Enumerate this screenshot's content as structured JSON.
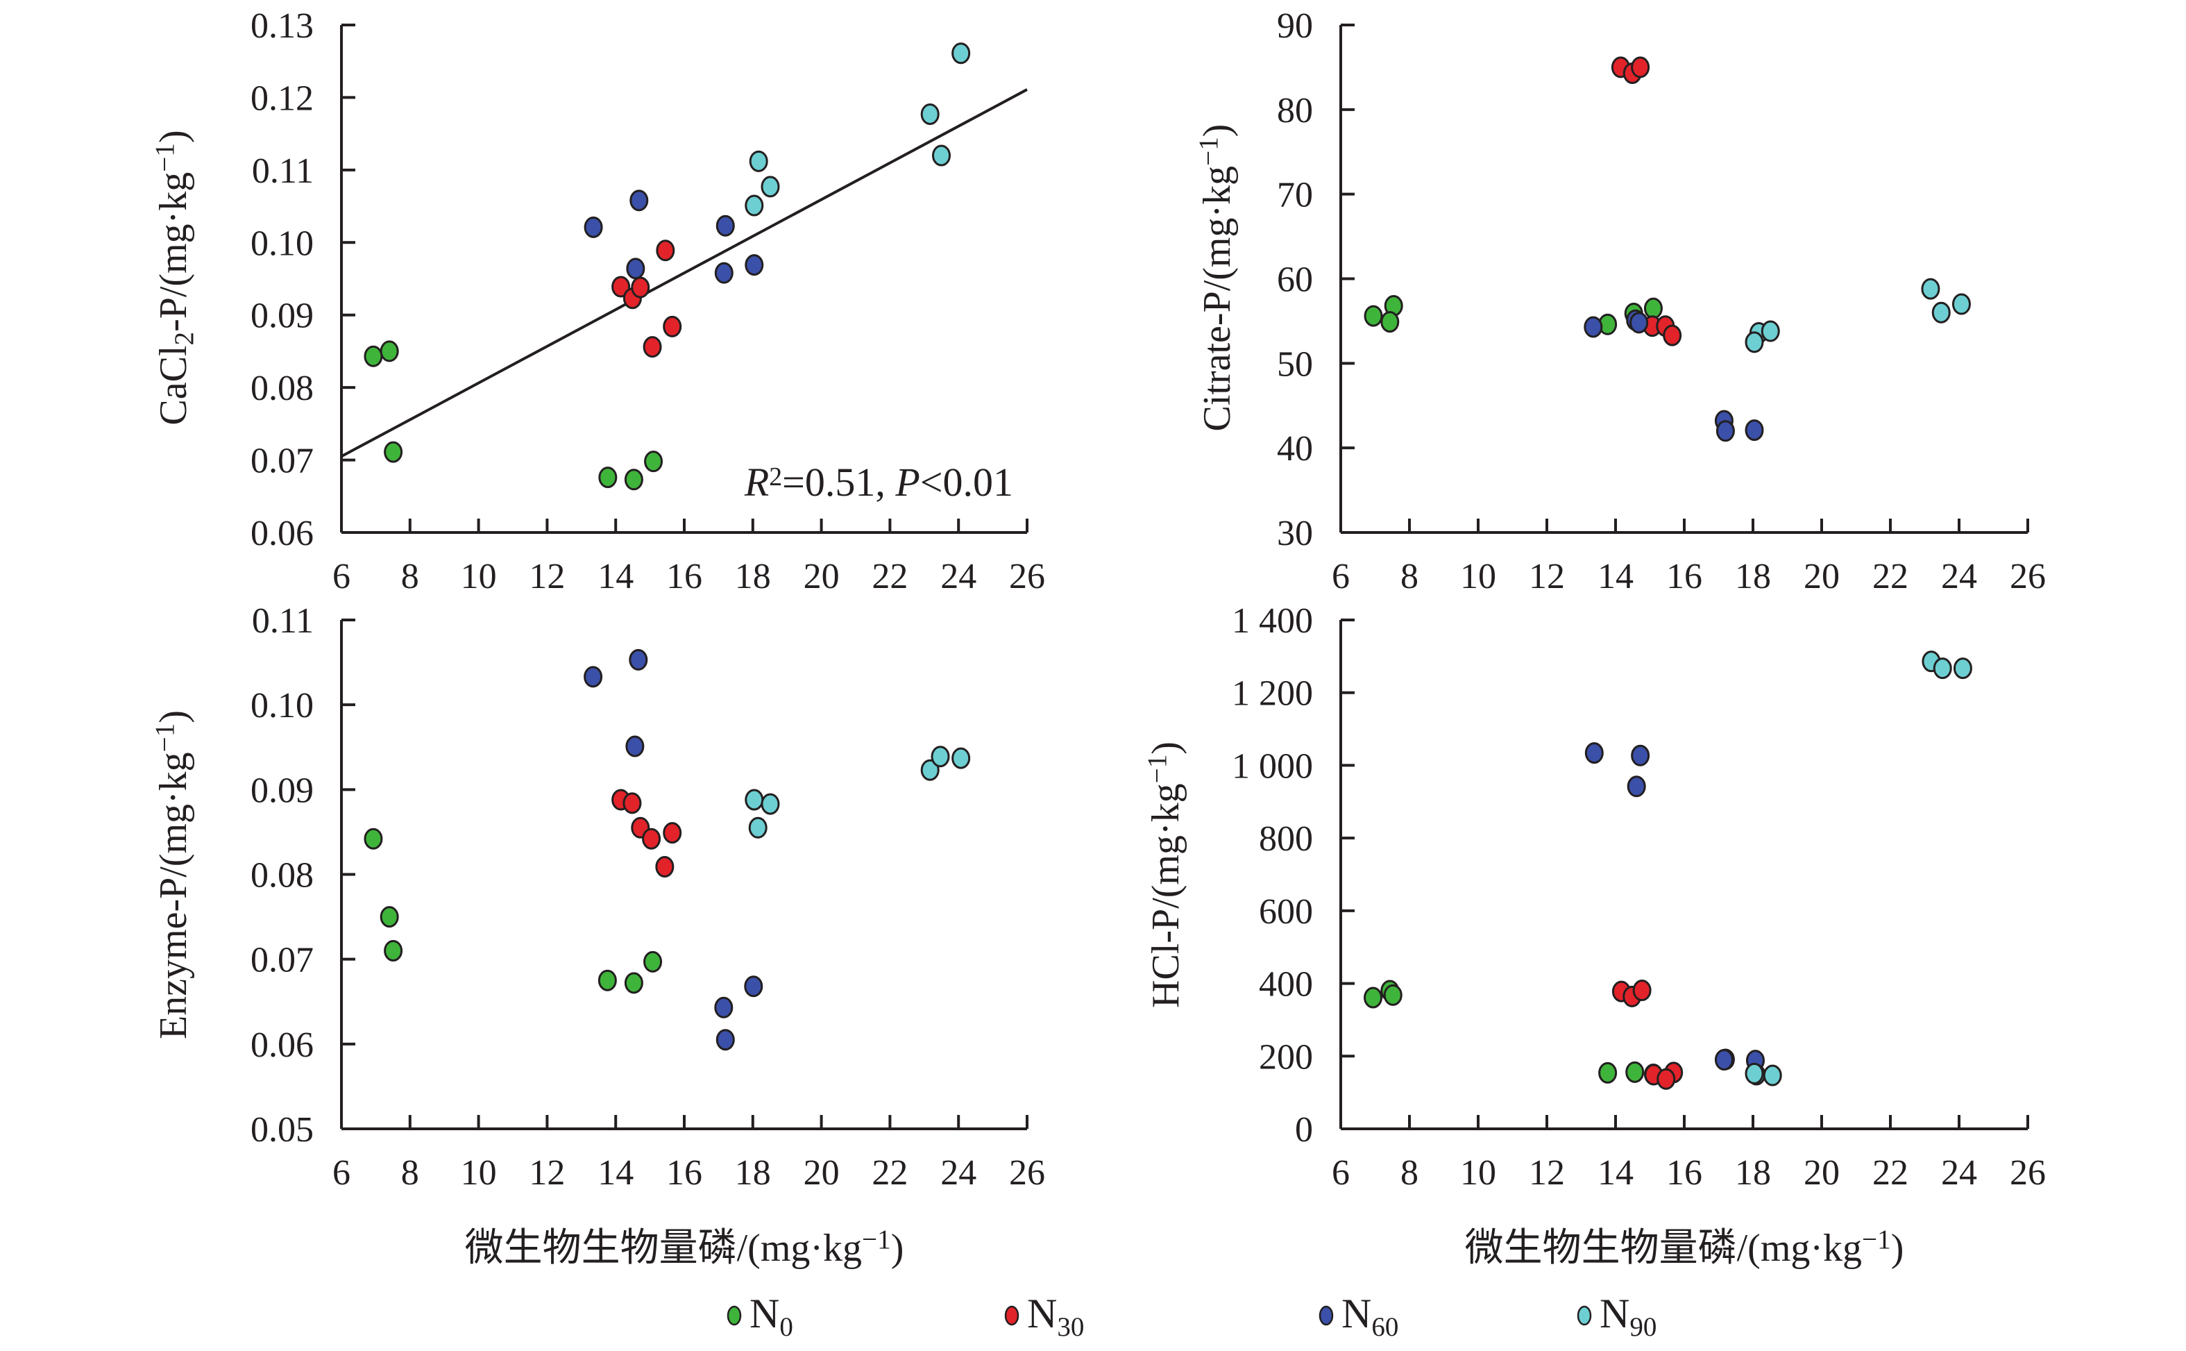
{
  "series_styles": [
    {
      "name": "N0",
      "label_main": "N",
      "label_sub": "0",
      "color": "#3fb43b"
    },
    {
      "name": "N30",
      "label_main": "N",
      "label_sub": "30",
      "color": "#e3232a"
    },
    {
      "name": "N60",
      "label_main": "N",
      "label_sub": "60",
      "color": "#3b50a8"
    },
    {
      "name": "N90",
      "label_main": "N",
      "label_sub": "90",
      "color": "#6dcfd2"
    }
  ],
  "shared_xlabel": "微生物生物量磷/(mg·kg⁻¹)",
  "legend_position": "bottom",
  "chart_data": [
    {
      "type": "scatter",
      "panel": "top-left",
      "title": "",
      "xlabel": "",
      "ylabel": "CaCl₂-P/(mg·kg⁻¹)",
      "xlim": [
        6,
        26
      ],
      "ylim": [
        0.06,
        0.13
      ],
      "xticks": [
        6,
        8,
        10,
        12,
        14,
        16,
        18,
        20,
        22,
        24,
        26
      ],
      "yticks": [
        0.06,
        0.07,
        0.08,
        0.09,
        0.1,
        0.11,
        0.12,
        0.13
      ],
      "ytick_labels": [
        "0.06",
        "0.07",
        "0.08",
        "0.09",
        "0.10",
        "0.11",
        "0.12",
        "0.13"
      ],
      "xtick_labels": [
        "6",
        "8",
        "10",
        "12",
        "14",
        "16",
        "18",
        "20",
        "22",
        "24",
        "26"
      ],
      "annotation": {
        "r2_label": "R",
        "r2_sup": "2",
        "text": "=0.51, ",
        "p_label": "P",
        "p_text": "<0.01"
      },
      "trendline": {
        "x": [
          6,
          26
        ],
        "y": [
          0.0705,
          0.1211
        ]
      },
      "grid": false,
      "series": [
        {
          "name": "N0",
          "x": [
            6.93,
            7.4,
            7.51,
            13.77,
            14.53,
            15.1
          ],
          "y": [
            0.0843,
            0.085,
            0.0711,
            0.0676,
            0.0673,
            0.0698
          ]
        },
        {
          "name": "N30",
          "x": [
            14.15,
            14.49,
            14.72,
            15.45,
            15.65,
            15.07
          ],
          "y": [
            0.0939,
            0.0923,
            0.0938,
            0.0989,
            0.0884,
            0.0856
          ]
        },
        {
          "name": "N60",
          "x": [
            13.35,
            14.68,
            14.58,
            17.2,
            17.16,
            18.04
          ],
          "y": [
            0.1021,
            0.1058,
            0.0964,
            0.1023,
            0.0958,
            0.0969
          ]
        },
        {
          "name": "N90",
          "x": [
            18.17,
            18.51,
            18.04,
            23.17,
            23.5,
            24.07
          ],
          "y": [
            0.1112,
            0.1077,
            0.1051,
            0.1177,
            0.112,
            0.1261
          ]
        }
      ]
    },
    {
      "type": "scatter",
      "panel": "top-right",
      "title": "",
      "xlabel": "",
      "ylabel": "Citrate-P/(mg·kg⁻¹)",
      "xlim": [
        6,
        26
      ],
      "ylim": [
        30,
        90
      ],
      "xticks": [
        6,
        8,
        10,
        12,
        14,
        16,
        18,
        20,
        22,
        24,
        26
      ],
      "yticks": [
        30,
        40,
        50,
        60,
        70,
        80,
        90
      ],
      "ytick_labels": [
        "30",
        "40",
        "50",
        "60",
        "70",
        "80",
        "90"
      ],
      "xtick_labels": [],
      "grid": false,
      "series": [
        {
          "name": "N0",
          "x": [
            6.95,
            7.54,
            7.43,
            13.77,
            14.53,
            15.1
          ],
          "y": [
            55.6,
            56.8,
            54.9,
            54.6,
            55.9,
            56.5
          ]
        },
        {
          "name": "N30",
          "x": [
            14.15,
            14.49,
            14.72,
            15.07,
            15.45,
            15.65
          ],
          "y": [
            85.0,
            84.3,
            85.0,
            54.4,
            54.4,
            53.3
          ]
        },
        {
          "name": "N60",
          "x": [
            13.35,
            14.58,
            14.68,
            17.16,
            17.2,
            18.04
          ],
          "y": [
            54.3,
            55.1,
            54.8,
            43.2,
            42.0,
            42.1
          ]
        },
        {
          "name": "N90",
          "x": [
            18.17,
            18.51,
            18.04,
            23.17,
            23.48,
            24.07
          ],
          "y": [
            53.6,
            53.8,
            52.5,
            58.8,
            56.0,
            57.0
          ]
        }
      ]
    },
    {
      "type": "scatter",
      "panel": "bottom-left",
      "title": "",
      "xlabel": "微生物生物量磷/(mg·kg⁻¹)",
      "ylabel": "Enzyme-P/(mg·kg⁻¹)",
      "xlim": [
        6,
        26
      ],
      "ylim": [
        0.05,
        0.11
      ],
      "xticks": [
        6,
        8,
        10,
        12,
        14,
        16,
        18,
        20,
        22,
        24,
        26
      ],
      "yticks": [
        0.05,
        0.06,
        0.07,
        0.08,
        0.09,
        0.1,
        0.11
      ],
      "ytick_labels": [
        "0.05",
        "0.06",
        "0.07",
        "0.08",
        "0.09",
        "0.10",
        "0.11"
      ],
      "xtick_labels": [
        "6",
        "8",
        "10",
        "12",
        "14",
        "16",
        "18",
        "20",
        "22",
        "24",
        "26"
      ],
      "grid": false,
      "series": [
        {
          "name": "N0",
          "x": [
            6.93,
            7.4,
            7.51,
            13.76,
            14.53,
            15.08
          ],
          "y": [
            0.0842,
            0.075,
            0.071,
            0.0675,
            0.0672,
            0.0697
          ]
        },
        {
          "name": "N30",
          "x": [
            14.15,
            14.48,
            14.72,
            15.04,
            15.65,
            15.43
          ],
          "y": [
            0.0888,
            0.0884,
            0.0855,
            0.0842,
            0.0849,
            0.0809
          ]
        },
        {
          "name": "N60",
          "x": [
            13.34,
            14.66,
            14.56,
            18.02,
            17.15,
            17.2
          ],
          "y": [
            0.1033,
            0.1053,
            0.0951,
            0.0668,
            0.0643,
            0.0605
          ]
        },
        {
          "name": "N90",
          "x": [
            18.04,
            18.51,
            18.15,
            23.17,
            23.47,
            24.07
          ],
          "y": [
            0.0888,
            0.0883,
            0.0855,
            0.0923,
            0.0939,
            0.0937
          ]
        }
      ]
    },
    {
      "type": "scatter",
      "panel": "bottom-right",
      "title": "",
      "xlabel": "微生物生物量磷/(mg·kg⁻¹)",
      "ylabel": "HCl-P/(mg·kg⁻¹)",
      "xlim": [
        6,
        26
      ],
      "ylim": [
        0,
        1400
      ],
      "xticks": [
        6,
        8,
        10,
        12,
        14,
        16,
        18,
        20,
        22,
        24,
        26
      ],
      "yticks": [
        0,
        200,
        400,
        600,
        800,
        1000,
        1200,
        1400
      ],
      "ytick_labels": [
        "0",
        "200",
        "400",
        "600",
        "800",
        "1 000",
        "1 200",
        "1 400"
      ],
      "xtick_labels": [
        "6",
        "8",
        "10",
        "12",
        "14",
        "16",
        "18",
        "20",
        "22",
        "24",
        "26"
      ],
      "grid": false,
      "series": [
        {
          "name": "N0",
          "x": [
            6.94,
            7.43,
            7.52,
            13.77,
            14.56,
            15.1
          ],
          "y": [
            361,
            380,
            368,
            154,
            156,
            150
          ]
        },
        {
          "name": "N30",
          "x": [
            14.17,
            14.48,
            14.77,
            15.11,
            15.69,
            15.47
          ],
          "y": [
            378,
            364,
            381,
            149,
            155,
            137
          ]
        },
        {
          "name": "N60",
          "x": [
            13.38,
            14.72,
            14.61,
            17.2,
            17.16,
            18.07
          ],
          "y": [
            1034,
            1027,
            942,
            191,
            190,
            188
          ]
        },
        {
          "name": "N90",
          "x": [
            18.1,
            18.57,
            18.04,
            23.19,
            23.52,
            24.11
          ],
          "y": [
            149,
            147,
            152,
            1286,
            1267,
            1267
          ]
        }
      ]
    }
  ]
}
